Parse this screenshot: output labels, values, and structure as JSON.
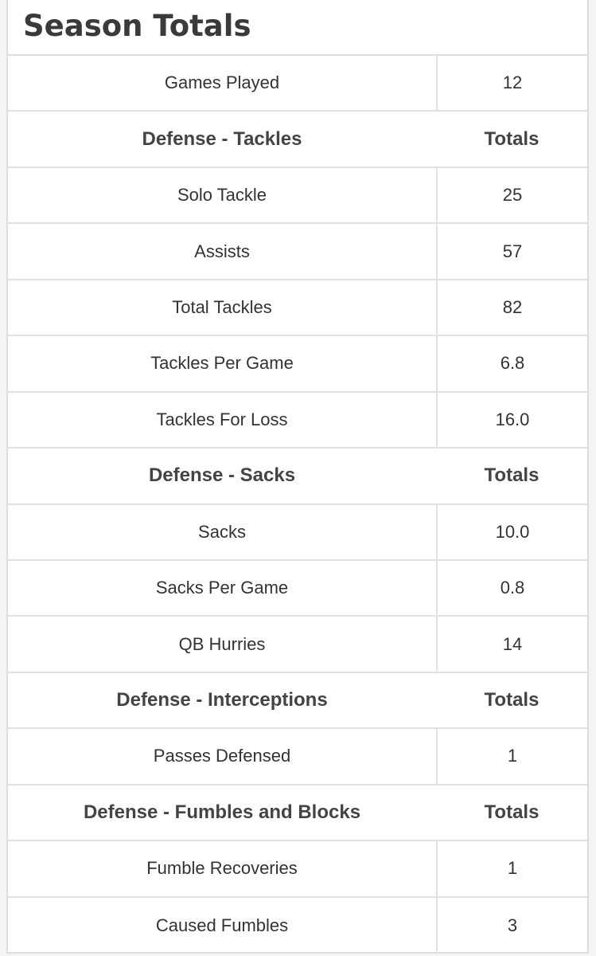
{
  "header": {
    "title": "Season Totals"
  },
  "table": {
    "rows": [
      [
        "Games Played",
        "12"
      ]
    ],
    "sections": [
      {
        "header": [
          "Defense - Tackles",
          "Totals"
        ],
        "rows": [
          [
            "Solo Tackle",
            "25"
          ],
          [
            "Assists",
            "57"
          ],
          [
            "Total Tackles",
            "82"
          ],
          [
            "Tackles Per Game",
            "6.8"
          ],
          [
            "Tackles For Loss",
            "16.0"
          ]
        ]
      },
      {
        "header": [
          "Defense - Sacks",
          "Totals"
        ],
        "rows": [
          [
            "Sacks",
            "10.0"
          ],
          [
            "Sacks Per Game",
            "0.8"
          ],
          [
            "QB Hurries",
            "14"
          ]
        ]
      },
      {
        "header": [
          "Defense - Interceptions",
          "Totals"
        ],
        "rows": [
          [
            "Passes Defensed",
            "1"
          ]
        ]
      },
      {
        "header": [
          "Defense - Fumbles and Blocks",
          "Totals"
        ],
        "rows": [
          [
            "Fumble Recoveries",
            "1"
          ],
          [
            "Caused Fumbles",
            "3"
          ]
        ]
      }
    ]
  }
}
